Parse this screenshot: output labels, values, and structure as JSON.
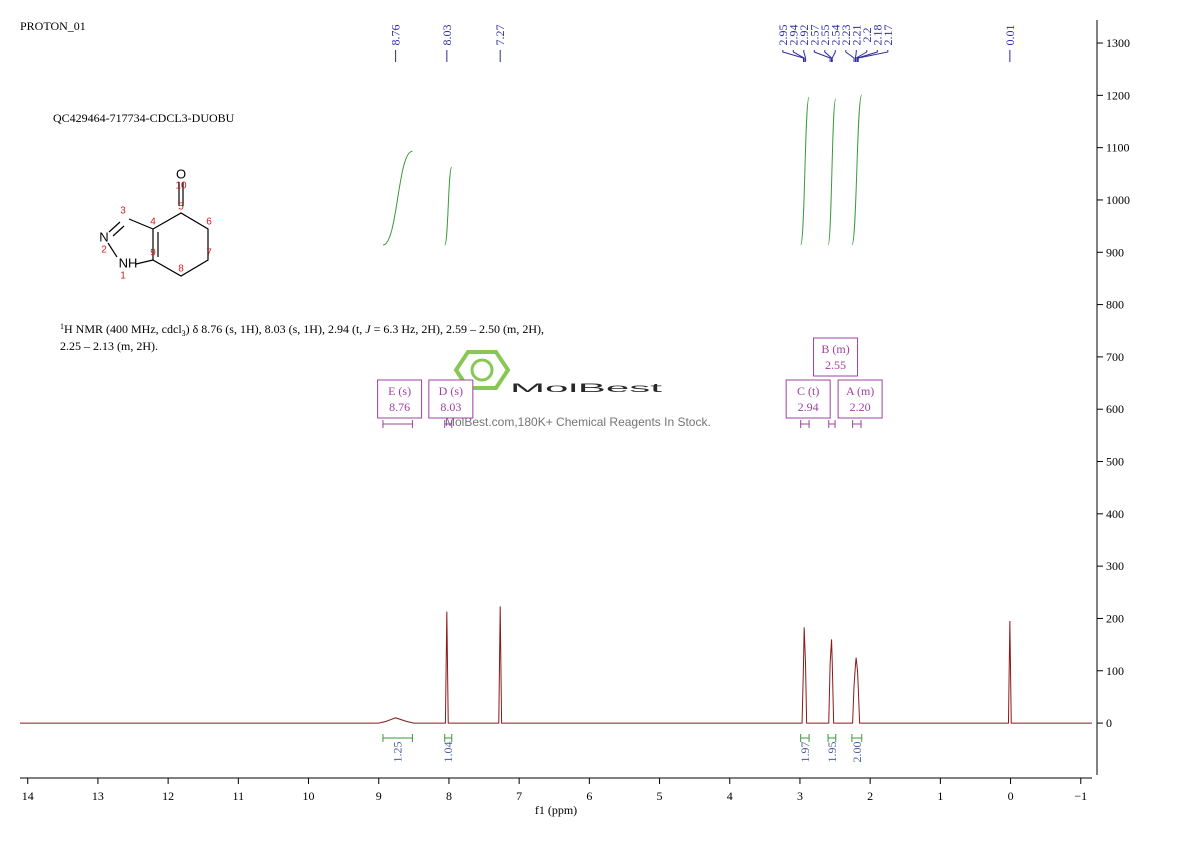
{
  "header": {
    "label": "PROTON_01",
    "sample": "QC429464-717734-CDCL3-DUOBU"
  },
  "description": {
    "line1": [
      "1",
      "H NMR (400 MHz, cdcl",
      "3",
      ") δ 8.76 (s, 1H), 8.03 (s, 1H), 2.94 (t, ",
      "J",
      " = 6.3 Hz, 2H), 2.59 – 2.50 (m, 2H),"
    ],
    "line2": "2.25 – 2.13 (m, 2H)."
  },
  "structure": {
    "atoms": [
      "O",
      "10",
      "5",
      "6",
      "7",
      "8",
      "9",
      "4",
      "3",
      "N",
      "2",
      "NH",
      "1"
    ]
  },
  "watermark": {
    "brand": "MolBest",
    "tagline": "MolBest.com,180K+ Chemical Reagents In Stock."
  },
  "chart_data": {
    "type": "nmr",
    "x_label": "f1 (ppm)",
    "xlim": [
      14.11,
      -1.16
    ],
    "xticks": [
      14,
      13,
      12,
      11,
      10,
      9,
      8,
      7,
      6,
      5,
      4,
      3,
      2,
      1,
      0,
      {
        "value": -1,
        "label": "−1"
      }
    ],
    "ylim": [
      -105,
      1344
    ],
    "yticks": [
      0,
      100,
      200,
      300,
      400,
      500,
      600,
      700,
      800,
      900,
      1000,
      1100,
      1200,
      1300
    ],
    "series": [
      {
        "color": "#8b1a1a",
        "x": [
          14.11,
          9.0,
          8.9,
          8.76,
          8.6,
          8.5,
          8.05,
          8.03,
          8.01,
          7.29,
          7.27,
          7.25,
          2.97,
          2.95,
          2.94,
          2.92,
          2.905,
          2.59,
          2.57,
          2.55,
          2.54,
          2.52,
          2.25,
          2.23,
          2.21,
          2.2,
          2.18,
          2.17,
          2.15,
          0.03,
          0.01,
          -0.01,
          -1.16
        ],
        "values": [
          0,
          0,
          3,
          10,
          3,
          0,
          0,
          213,
          0,
          0,
          223,
          0,
          0,
          110,
          183,
          110,
          0,
          0,
          115,
          160,
          115,
          0,
          0,
          70,
          110,
          125,
          100,
          70,
          0,
          0,
          195,
          0,
          0
        ]
      }
    ],
    "peaks": [
      8.76,
      8.03,
      7.27,
      2.95,
      2.94,
      2.92,
      2.57,
      2.55,
      2.54,
      2.23,
      2.21,
      2.2,
      2.18,
      2.17,
      0.01
    ],
    "peak_color": "#2a2aa0",
    "integral_color": "#3a9a3a",
    "integrals": [
      {
        "from": 8.94,
        "to": 8.52,
        "value": 1.25
      },
      {
        "from": 8.06,
        "to": 7.96,
        "value": 1.04
      },
      {
        "from": 2.99,
        "to": 2.87,
        "value": 1.97
      },
      {
        "from": 2.6,
        "to": 2.49,
        "value": 1.95
      },
      {
        "from": 2.26,
        "to": 2.12,
        "value": 2.0
      }
    ],
    "multiplet_color": "#a040a0",
    "multiplets": [
      {
        "label": "E (s)",
        "shift": 8.76,
        "from": 8.94,
        "to": 8.52
      },
      {
        "label": "D (s)",
        "shift": 8.03,
        "from": 8.06,
        "to": 7.96
      },
      {
        "label": "C (t)",
        "shift": 2.94,
        "from": 2.99,
        "to": 2.87
      },
      {
        "label": "B (m)",
        "shift": 2.55,
        "from": 2.59,
        "to": 2.5
      },
      {
        "label": "A (m)",
        "shift": 2.2,
        "from": 2.25,
        "to": 2.13
      }
    ]
  }
}
